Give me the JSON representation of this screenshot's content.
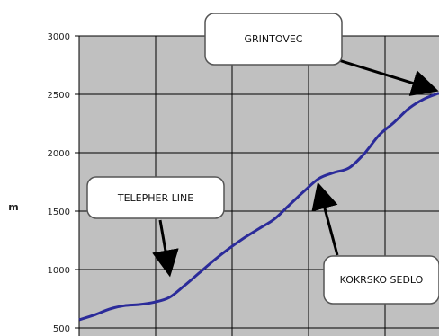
{
  "chart_data": {
    "type": "line",
    "title": "",
    "xlabel": "",
    "ylabel": "m",
    "ylim": [
      500,
      3000
    ],
    "yticks": [
      500,
      1000,
      1500,
      2000,
      2500,
      3000
    ],
    "ytick_labels": [
      "500",
      "1000",
      "1500",
      "2000",
      "2500",
      "3000"
    ],
    "x": [
      0,
      0.5,
      1,
      1.5,
      2,
      2.5,
      3,
      3.5,
      4,
      4.5,
      5,
      5.5,
      6,
      6.5,
      7,
      7.5,
      8,
      8.5,
      9,
      9.5,
      10,
      10.5,
      11,
      11.5,
      12
    ],
    "xlim": [
      0,
      12
    ],
    "grid": true,
    "series": [
      {
        "values": [
          570,
          610,
          660,
          690,
          700,
          720,
          760,
          860,
          970,
          1080,
          1180,
          1270,
          1350,
          1430,
          1550,
          1670,
          1780,
          1830,
          1870,
          1990,
          2150,
          2260,
          2380,
          2460,
          2510
        ],
        "color": "#2b2b9a"
      }
    ],
    "annotations": [
      {
        "text": "GRINTOVEC",
        "x": 12,
        "y": 2510
      },
      {
        "text": "TELEPHER LINE",
        "x": 3.0,
        "y": 950
      },
      {
        "text": "KOKRSKO SEDLO",
        "x": 8.0,
        "y": 1750
      }
    ]
  },
  "colors": {
    "plot_bg": "#c0c0c0",
    "grid": "#000000",
    "line": "#2b2b9a",
    "callout_bg": "#ffffff"
  }
}
